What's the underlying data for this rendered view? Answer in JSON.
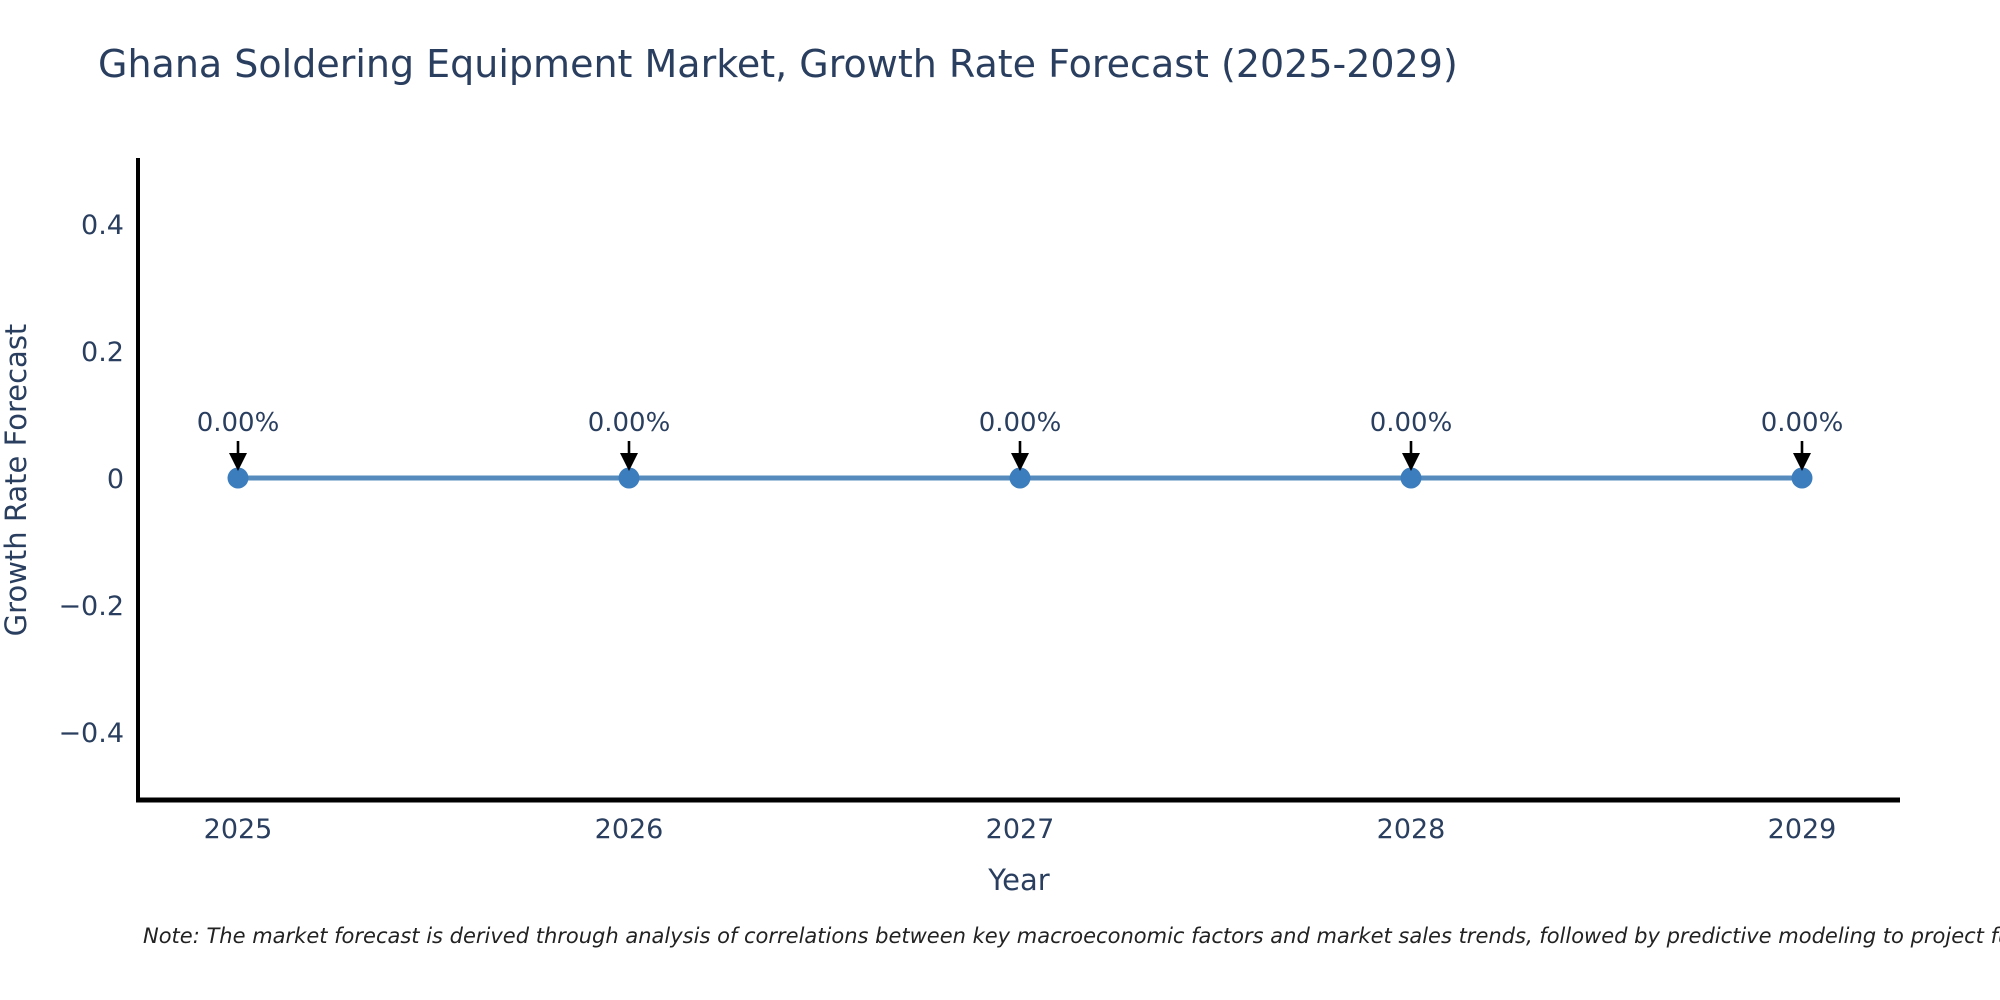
{
  "title": "Ghana Soldering Equipment Market, Growth Rate Forecast (2025-2029)",
  "note": "Note: The market forecast is derived through analysis of correlations between key macroeconomic factors and market sales trends, followed by predictive modeling to project future sa",
  "chart_data": {
    "type": "line",
    "title": "Ghana Soldering Equipment Market, Growth Rate Forecast (2025-2029)",
    "xlabel": "Year",
    "ylabel": "Growth Rate Forecast",
    "x": [
      "2025",
      "2026",
      "2027",
      "2028",
      "2029"
    ],
    "values": [
      0,
      0,
      0,
      0,
      0
    ],
    "point_labels": [
      "0.00%",
      "0.00%",
      "0.00%",
      "0.00%",
      "0.00%"
    ],
    "yticks": [
      0.4,
      0.2,
      0,
      -0.2,
      -0.4
    ],
    "ytick_labels": [
      "0.4",
      "0.2",
      "0",
      "−0.2",
      "−0.4"
    ],
    "ylim": [
      -0.5,
      0.5
    ],
    "grid": false,
    "legend": "none",
    "annotation_arrow": "down-arrow",
    "colors": {
      "line": "#568bbd",
      "marker": "#3c7dbd",
      "axis": "#000000",
      "text": "#2a3f5f",
      "arrow": "#000000",
      "background": "#ffffff"
    }
  }
}
